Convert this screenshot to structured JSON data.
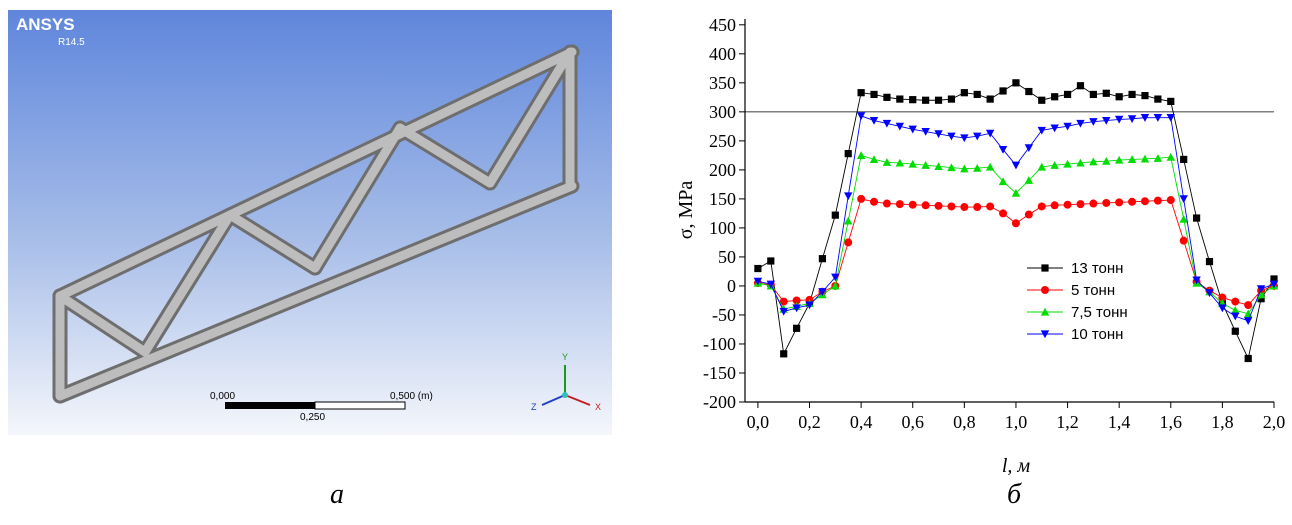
{
  "panel_a": {
    "logo": "ANSYS",
    "version": "R14.5",
    "scale_left": "0,000",
    "scale_right": "0,500 (m)",
    "scale_middle": "0,250",
    "axis_y": "Y",
    "axis_z": "Z",
    "axis_x": "X"
  },
  "captions": [
    "а",
    "б"
  ],
  "chart_data": {
    "type": "line",
    "x_label": "l, м",
    "y_label": "σ, MPa",
    "x": [
      0,
      0.05,
      0.1,
      0.15,
      0.2,
      0.25,
      0.3,
      0.35,
      0.4,
      0.45,
      0.5,
      0.55,
      0.6,
      0.65,
      0.7,
      0.75,
      0.8,
      0.85,
      0.9,
      0.95,
      1.0,
      1.05,
      1.1,
      1.15,
      1.2,
      1.25,
      1.3,
      1.35,
      1.4,
      1.45,
      1.5,
      1.55,
      1.6,
      1.65,
      1.7,
      1.75,
      1.8,
      1.85,
      1.9,
      1.95,
      2.0
    ],
    "series": [
      {
        "name": "13 тонн",
        "color": "#000000",
        "marker": "square",
        "values": [
          30,
          43,
          -117,
          -73,
          -30,
          47,
          122,
          228,
          333,
          330,
          325,
          322,
          321,
          320,
          320,
          322,
          333,
          330,
          322,
          336,
          350,
          335,
          320,
          326,
          330,
          345,
          330,
          332,
          326,
          330,
          328,
          322,
          318,
          218,
          117,
          42,
          -30,
          -78,
          -125,
          -22,
          12
        ]
      },
      {
        "name": "5 тонн",
        "color": "#ff0000",
        "marker": "circle",
        "values": [
          5,
          2,
          -27,
          -25,
          -24,
          -10,
          0,
          75,
          150,
          145,
          142,
          141,
          140,
          139,
          138,
          137,
          136,
          136,
          137,
          125,
          108,
          123,
          137,
          139,
          140,
          141,
          142,
          143,
          144,
          145,
          146,
          147,
          148,
          78,
          7,
          -8,
          -20,
          -27,
          -33,
          -8,
          0
        ]
      },
      {
        "name": "7,5 тонн",
        "color": "#00dd00",
        "marker": "triangle-up",
        "values": [
          5,
          0,
          -40,
          -35,
          -30,
          -15,
          0,
          112,
          225,
          218,
          213,
          212,
          210,
          208,
          206,
          204,
          202,
          203,
          205,
          180,
          160,
          182,
          205,
          208,
          210,
          212,
          214,
          215,
          217,
          218,
          219,
          220,
          222,
          115,
          5,
          -10,
          -30,
          -42,
          -48,
          -15,
          0
        ]
      },
      {
        "name": "10 тонн",
        "color": "#0000ff",
        "marker": "triangle-down",
        "values": [
          8,
          3,
          -44,
          -38,
          -33,
          -10,
          15,
          155,
          293,
          285,
          280,
          275,
          270,
          266,
          262,
          258,
          255,
          258,
          263,
          235,
          208,
          238,
          268,
          272,
          275,
          280,
          283,
          285,
          287,
          288,
          290,
          290,
          290,
          150,
          10,
          -12,
          -38,
          -52,
          -60,
          -5,
          3
        ]
      }
    ],
    "xlim": [
      -0.05,
      2.0
    ],
    "ylim": [
      -200,
      460
    ],
    "xticks": [
      {
        "value": 0,
        "label": "0,0"
      },
      {
        "value": 0.2,
        "label": "0,2"
      },
      {
        "value": 0.4,
        "label": "0,4"
      },
      {
        "value": 0.6,
        "label": "0,6"
      },
      {
        "value": 0.8,
        "label": "0,8"
      },
      {
        "value": 1.0,
        "label": "1,0"
      },
      {
        "value": 1.2,
        "label": "1,2"
      },
      {
        "value": 1.4,
        "label": "1,4"
      },
      {
        "value": 1.6,
        "label": "1,6"
      },
      {
        "value": 1.8,
        "label": "1,8"
      },
      {
        "value": 2.0,
        "label": "2,0"
      }
    ],
    "yticks": [
      -200,
      -150,
      -100,
      -50,
      0,
      50,
      100,
      150,
      200,
      250,
      300,
      350,
      400,
      450
    ],
    "reference_line": 300,
    "grid": false,
    "legend": "center"
  }
}
